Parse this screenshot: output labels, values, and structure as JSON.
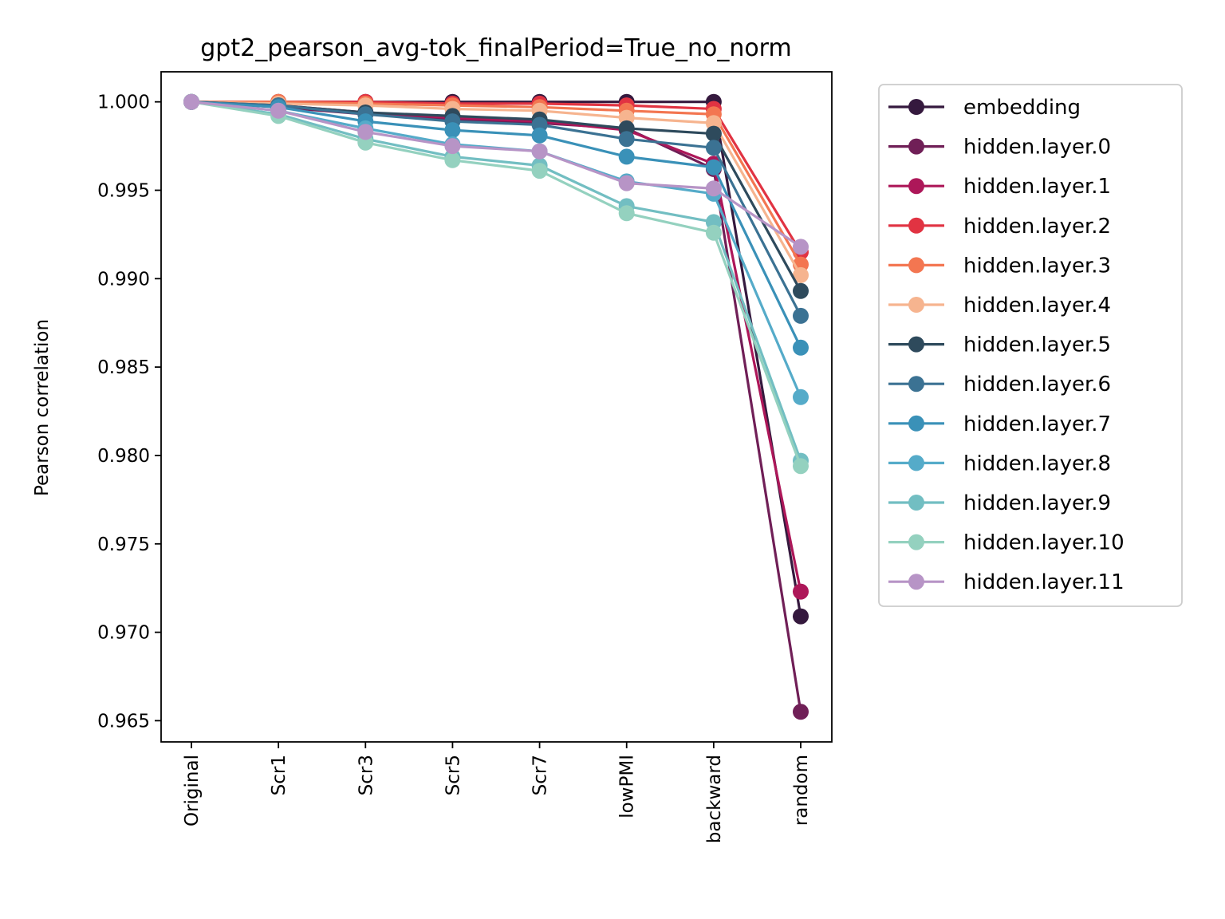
{
  "chart_data": {
    "type": "line",
    "title": "gpt2_pearson_avg-tok_finalPeriod=True_no_norm",
    "xlabel": "",
    "ylabel": "Pearson correlation",
    "ylim": [
      0.9638,
      1.0017
    ],
    "yticks": [
      "0.965",
      "0.970",
      "0.975",
      "0.980",
      "0.985",
      "0.990",
      "0.995",
      "1.000"
    ],
    "ytick_values": [
      0.965,
      0.97,
      0.975,
      0.98,
      0.985,
      0.99,
      0.995,
      1.0
    ],
    "categories": [
      "Original",
      "Scr1",
      "Scr3",
      "Scr5",
      "Scr7",
      "lowPMI",
      "backward",
      "random"
    ],
    "grid": false,
    "legend_position": "outside-right",
    "series": [
      {
        "name": "embedding",
        "color": "#35193e",
        "values": [
          1.0,
          1.0,
          1.0,
          1.0,
          1.0,
          1.0,
          1.0,
          0.9709
        ]
      },
      {
        "name": "hidden.layer.0",
        "color": "#701f57",
        "values": [
          1.0,
          0.9997,
          0.9993,
          0.999,
          0.9988,
          0.9985,
          0.9962,
          0.9655
        ]
      },
      {
        "name": "hidden.layer.1",
        "color": "#ad1759",
        "values": [
          1.0,
          0.9998,
          0.9994,
          0.9991,
          0.9989,
          0.9984,
          0.9965,
          0.9723
        ]
      },
      {
        "name": "hidden.layer.2",
        "color": "#e13342",
        "values": [
          1.0,
          1.0,
          1.0,
          0.9999,
          0.9999,
          0.9998,
          0.9996,
          0.9915
        ]
      },
      {
        "name": "hidden.layer.3",
        "color": "#f37651",
        "values": [
          1.0,
          1.0,
          0.9999,
          0.9998,
          0.9997,
          0.9995,
          0.9993,
          0.9908
        ]
      },
      {
        "name": "hidden.layer.4",
        "color": "#f6b48f",
        "values": [
          1.0,
          0.9999,
          0.9998,
          0.9996,
          0.9995,
          0.9991,
          0.9988,
          0.9902
        ]
      },
      {
        "name": "hidden.layer.5",
        "color": "#2e4a5c",
        "values": [
          1.0,
          0.9998,
          0.9994,
          0.9992,
          0.999,
          0.9985,
          0.9982,
          0.9893
        ]
      },
      {
        "name": "hidden.layer.6",
        "color": "#3b7293",
        "values": [
          1.0,
          0.9998,
          0.9993,
          0.9989,
          0.9987,
          0.9979,
          0.9974,
          0.9879
        ]
      },
      {
        "name": "hidden.layer.7",
        "color": "#3a91b8",
        "values": [
          1.0,
          0.9997,
          0.9989,
          0.9984,
          0.9981,
          0.9969,
          0.9963,
          0.9861
        ]
      },
      {
        "name": "hidden.layer.8",
        "color": "#55abc9",
        "values": [
          1.0,
          0.9995,
          0.9985,
          0.9976,
          0.9972,
          0.9955,
          0.9948,
          0.9833
        ]
      },
      {
        "name": "hidden.layer.9",
        "color": "#72bec2",
        "values": [
          1.0,
          0.9993,
          0.9979,
          0.9969,
          0.9964,
          0.9941,
          0.9932,
          0.9797
        ]
      },
      {
        "name": "hidden.layer.10",
        "color": "#94d1bf",
        "values": [
          1.0,
          0.9992,
          0.9977,
          0.9967,
          0.9961,
          0.9937,
          0.9926,
          0.9794
        ]
      },
      {
        "name": "hidden.layer.11",
        "color": "#b794c6",
        "values": [
          1.0,
          0.9995,
          0.9983,
          0.9975,
          0.9972,
          0.9954,
          0.9951,
          0.9918
        ]
      }
    ]
  }
}
